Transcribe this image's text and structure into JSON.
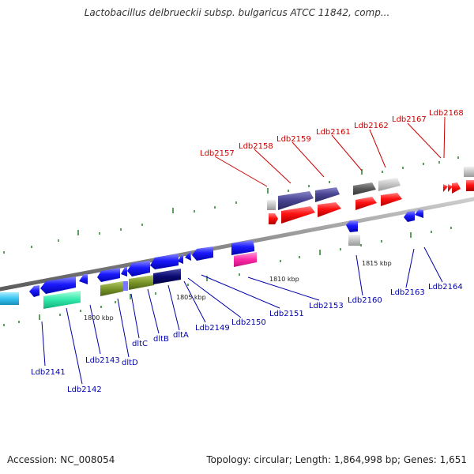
{
  "title": "Lactobacillus delbrueckii subsp. bulgaricus ATCC 11842, comp...",
  "footer": {
    "accession": "Accession: NC_008054",
    "summary": "Topology: circular; Length: 1,864,998 bp; Genes: 1,651"
  },
  "colors": {
    "backbone": "#888888",
    "tick": "#338833",
    "red_label": "#cc0000",
    "blue_label": "#0000aa"
  },
  "scale_labels": [
    "1800 kbp",
    "1805 kbp",
    "1810 kbp",
    "1815 kbp"
  ],
  "top_labels": [
    "Ldb2157",
    "Ldb2158",
    "Ldb2159",
    "Ldb2161",
    "Ldb2162",
    "Ldb2167",
    "Ldb2168"
  ],
  "bottom_labels": [
    "Ldb2141",
    "Ldb2142",
    "Ldb2143",
    "dltD",
    "dltC",
    "dltB",
    "dltA",
    "Ldb2149",
    "Ldb2150",
    "Ldb2151",
    "Ldb2153",
    "Ldb2160",
    "Ldb2163",
    "Ldb2164"
  ]
}
